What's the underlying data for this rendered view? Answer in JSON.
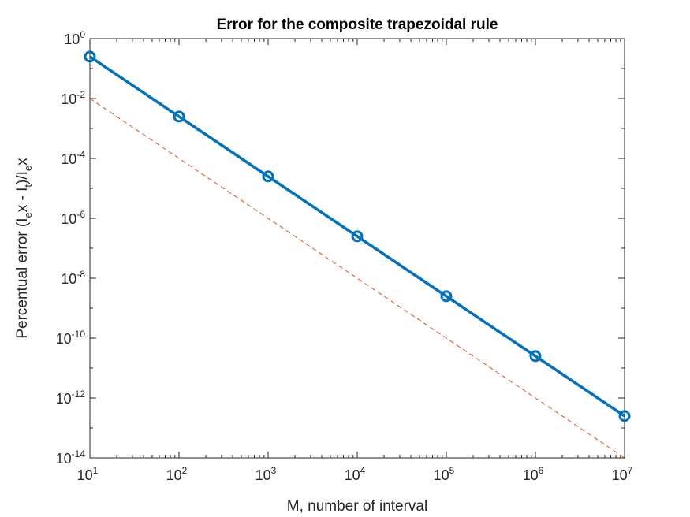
{
  "chart_data": {
    "type": "line",
    "title": "Error for the composite trapezoidal rule",
    "xlabel": "M, number of interval",
    "ylabel_parts": [
      "Percentual error (I",
      "e",
      "x - I",
      "t",
      ")/I",
      "e",
      "x"
    ],
    "x_scale": "log",
    "y_scale": "log",
    "xlim": [
      10,
      10000000
    ],
    "ylim": [
      1e-14,
      1
    ],
    "x_ticks": [
      {
        "base": "10",
        "exp": "1",
        "value": 10
      },
      {
        "base": "10",
        "exp": "2",
        "value": 100
      },
      {
        "base": "10",
        "exp": "3",
        "value": 1000
      },
      {
        "base": "10",
        "exp": "4",
        "value": 10000
      },
      {
        "base": "10",
        "exp": "5",
        "value": 100000
      },
      {
        "base": "10",
        "exp": "6",
        "value": 1000000
      },
      {
        "base": "10",
        "exp": "7",
        "value": 10000000
      }
    ],
    "y_ticks": [
      {
        "base": "10",
        "exp": "0",
        "value": 1
      },
      {
        "base": "10",
        "exp": "-2",
        "value": 0.01
      },
      {
        "base": "10",
        "exp": "-4",
        "value": 0.0001
      },
      {
        "base": "10",
        "exp": "-6",
        "value": 1e-06
      },
      {
        "base": "10",
        "exp": "-8",
        "value": 1e-08
      },
      {
        "base": "10",
        "exp": "-10",
        "value": 1e-10
      },
      {
        "base": "10",
        "exp": "-12",
        "value": 1e-12
      },
      {
        "base": "10",
        "exp": "-14",
        "value": 1e-14
      }
    ],
    "grid": false,
    "series": [
      {
        "style": "solid-with-circle-markers",
        "color": "#0072BD",
        "x": [
          10,
          100,
          1000,
          10000,
          100000,
          1000000,
          10000000
        ],
        "y": [
          0.25,
          0.0025,
          2.5e-05,
          2.5e-07,
          2.5e-09,
          2.5e-11,
          2.5e-13
        ]
      },
      {
        "style": "dashed",
        "color": "#D95319",
        "x": [
          10,
          10000000
        ],
        "y": [
          0.01,
          1e-14
        ]
      }
    ]
  }
}
